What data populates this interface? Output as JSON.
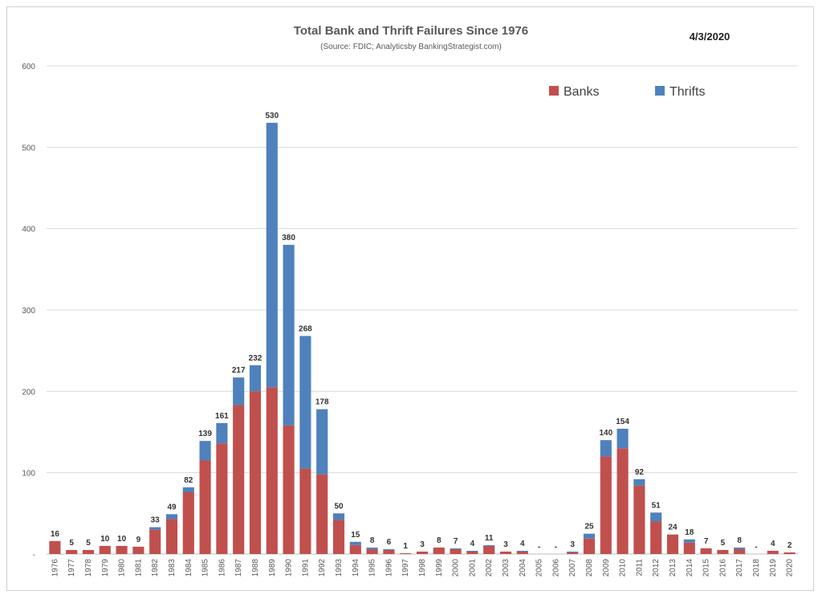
{
  "chart_data": {
    "type": "bar",
    "stacked": true,
    "title": "Total Bank and Thrift Failures Since 1976",
    "subtitle": "(Source: FDIC; Analyticsby BankingStrategist.com)",
    "date_label": "4/3/2020",
    "ylim": [
      0,
      600
    ],
    "yticks": [
      "-",
      "100",
      "200",
      "300",
      "400",
      "500",
      "600"
    ],
    "grid": true,
    "legend_position": "top-right",
    "colors": {
      "Banks": "#c0504d",
      "Thrifts": "#4f81bd"
    },
    "categories": [
      "1976",
      "1977",
      "1978",
      "1979",
      "1980",
      "1981",
      "1982",
      "1983",
      "1984",
      "1985",
      "1986",
      "1987",
      "1988",
      "1989",
      "1990",
      "1991",
      "1992",
      "1993",
      "1994",
      "1995",
      "1996",
      "1997",
      "1998",
      "1999",
      "2000",
      "2001",
      "2002",
      "2003",
      "2004",
      "2005",
      "2006",
      "2007",
      "2008",
      "2009",
      "2010",
      "2011",
      "2012",
      "2013",
      "2014",
      "2015",
      "2016",
      "2017",
      "2018",
      "2019",
      "2020"
    ],
    "series": [
      {
        "name": "Banks",
        "values": [
          16,
          5,
          5,
          10,
          10,
          9,
          30,
          43,
          76,
          115,
          136,
          183,
          200,
          205,
          158,
          105,
          98,
          42,
          11,
          6,
          5,
          1,
          3,
          8,
          6,
          3,
          10,
          3,
          3,
          0,
          0,
          2,
          19,
          120,
          130,
          84,
          40,
          24,
          14,
          7,
          5,
          6,
          0,
          4,
          2
        ]
      },
      {
        "name": "Thrifts",
        "values": [
          0,
          0,
          0,
          0,
          0,
          0,
          3,
          6,
          6,
          24,
          25,
          34,
          32,
          325,
          222,
          163,
          80,
          8,
          4,
          2,
          1,
          0,
          0,
          0,
          1,
          1,
          1,
          0,
          1,
          0,
          0,
          1,
          6,
          20,
          24,
          8,
          11,
          0,
          4,
          0,
          0,
          2,
          0,
          0,
          0
        ]
      }
    ],
    "totals_labels": [
      "16",
      "5",
      "5",
      "10",
      "10",
      "9",
      "33",
      "49",
      "82",
      "139",
      "161",
      "217",
      "232",
      "530",
      "380",
      "268",
      "178",
      "50",
      "15",
      "8",
      "6",
      "1",
      "3",
      "8",
      "7",
      "4",
      "11",
      "3",
      "4",
      "-",
      "-",
      "3",
      "25",
      "140",
      "154",
      "92",
      "51",
      "24",
      "18",
      "7",
      "5",
      "8",
      "-",
      "4",
      "2"
    ]
  }
}
